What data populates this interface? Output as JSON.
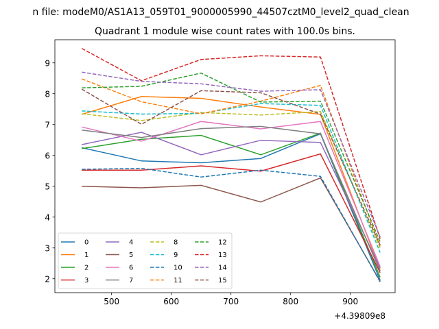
{
  "chart_data": {
    "type": "line",
    "suptitle": "n file: modeM0/AS1A13_059T01_9000005990_44507cztM0_level2_quad_clean",
    "title": "Quadrant 1 module wise count rates with 100.0s bins.",
    "x_offset_label": "+4.39809e8",
    "x": [
      450,
      550,
      650,
      750,
      850,
      950
    ],
    "xlim": [
      405,
      975
    ],
    "ylim": [
      1.55,
      9.75
    ],
    "xticks": [
      500,
      600,
      700,
      800,
      900
    ],
    "yticks": [
      2,
      3,
      4,
      5,
      6,
      7,
      8,
      9
    ],
    "xtick_labels": [
      "500",
      "600",
      "700",
      "800",
      "900"
    ],
    "ytick_labels": [
      "2",
      "3",
      "4",
      "5",
      "6",
      "7",
      "8",
      "9"
    ],
    "legend_placement": "lower-left",
    "series": [
      {
        "name": "0",
        "color": "#1f77b4",
        "dash": "solid",
        "values": [
          6.25,
          5.82,
          5.76,
          5.9,
          6.7,
          1.95
        ]
      },
      {
        "name": "1",
        "color": "#ff7f0e",
        "dash": "solid",
        "values": [
          7.33,
          7.91,
          7.85,
          7.57,
          7.33,
          2.3
        ]
      },
      {
        "name": "2",
        "color": "#2ca02c",
        "dash": "solid",
        "values": [
          6.22,
          6.52,
          6.65,
          6.02,
          6.72,
          2.05
        ]
      },
      {
        "name": "3",
        "color": "#d62728",
        "dash": "solid",
        "values": [
          5.52,
          5.52,
          5.66,
          5.49,
          6.05,
          2.2
        ]
      },
      {
        "name": "4",
        "color": "#9467bd",
        "dash": "solid",
        "values": [
          6.35,
          6.75,
          6.02,
          6.49,
          6.42,
          2.35
        ]
      },
      {
        "name": "5",
        "color": "#8c564b",
        "dash": "solid",
        "values": [
          5.0,
          4.95,
          5.03,
          4.49,
          5.27,
          1.92
        ]
      },
      {
        "name": "6",
        "color": "#e377c2",
        "dash": "solid",
        "values": [
          6.92,
          6.46,
          7.1,
          6.86,
          7.1,
          2.4
        ]
      },
      {
        "name": "7",
        "color": "#7f7f7f",
        "dash": "solid",
        "values": [
          6.82,
          6.58,
          6.87,
          6.94,
          6.7,
          2.25
        ]
      },
      {
        "name": "8",
        "color": "#bcbd22",
        "dash": "dashed",
        "values": [
          7.35,
          7.13,
          7.39,
          7.31,
          7.42,
          3.0
        ]
      },
      {
        "name": "9",
        "color": "#17becf",
        "dash": "dashed",
        "values": [
          7.44,
          7.34,
          7.36,
          7.68,
          7.62,
          2.85
        ]
      },
      {
        "name": "10",
        "color": "#1f77b4",
        "dash": "dashed",
        "values": [
          5.55,
          5.58,
          5.3,
          5.52,
          5.32,
          1.9
        ]
      },
      {
        "name": "11",
        "color": "#ff7f0e",
        "dash": "dashed",
        "values": [
          8.48,
          7.74,
          7.35,
          7.76,
          8.27,
          3.05
        ]
      },
      {
        "name": "12",
        "color": "#2ca02c",
        "dash": "dashed",
        "values": [
          8.19,
          8.24,
          8.67,
          7.73,
          7.76,
          3.2
        ]
      },
      {
        "name": "13",
        "color": "#d62728",
        "dash": "dashed",
        "values": [
          9.47,
          8.42,
          9.11,
          9.23,
          9.19,
          3.3
        ]
      },
      {
        "name": "14",
        "color": "#9467bd",
        "dash": "dashed",
        "values": [
          8.7,
          8.4,
          8.32,
          8.08,
          8.13,
          3.35
        ]
      },
      {
        "name": "15",
        "color": "#8c564b",
        "dash": "dashed",
        "values": [
          8.15,
          7.01,
          8.1,
          8.03,
          7.34,
          3.1
        ]
      }
    ]
  }
}
